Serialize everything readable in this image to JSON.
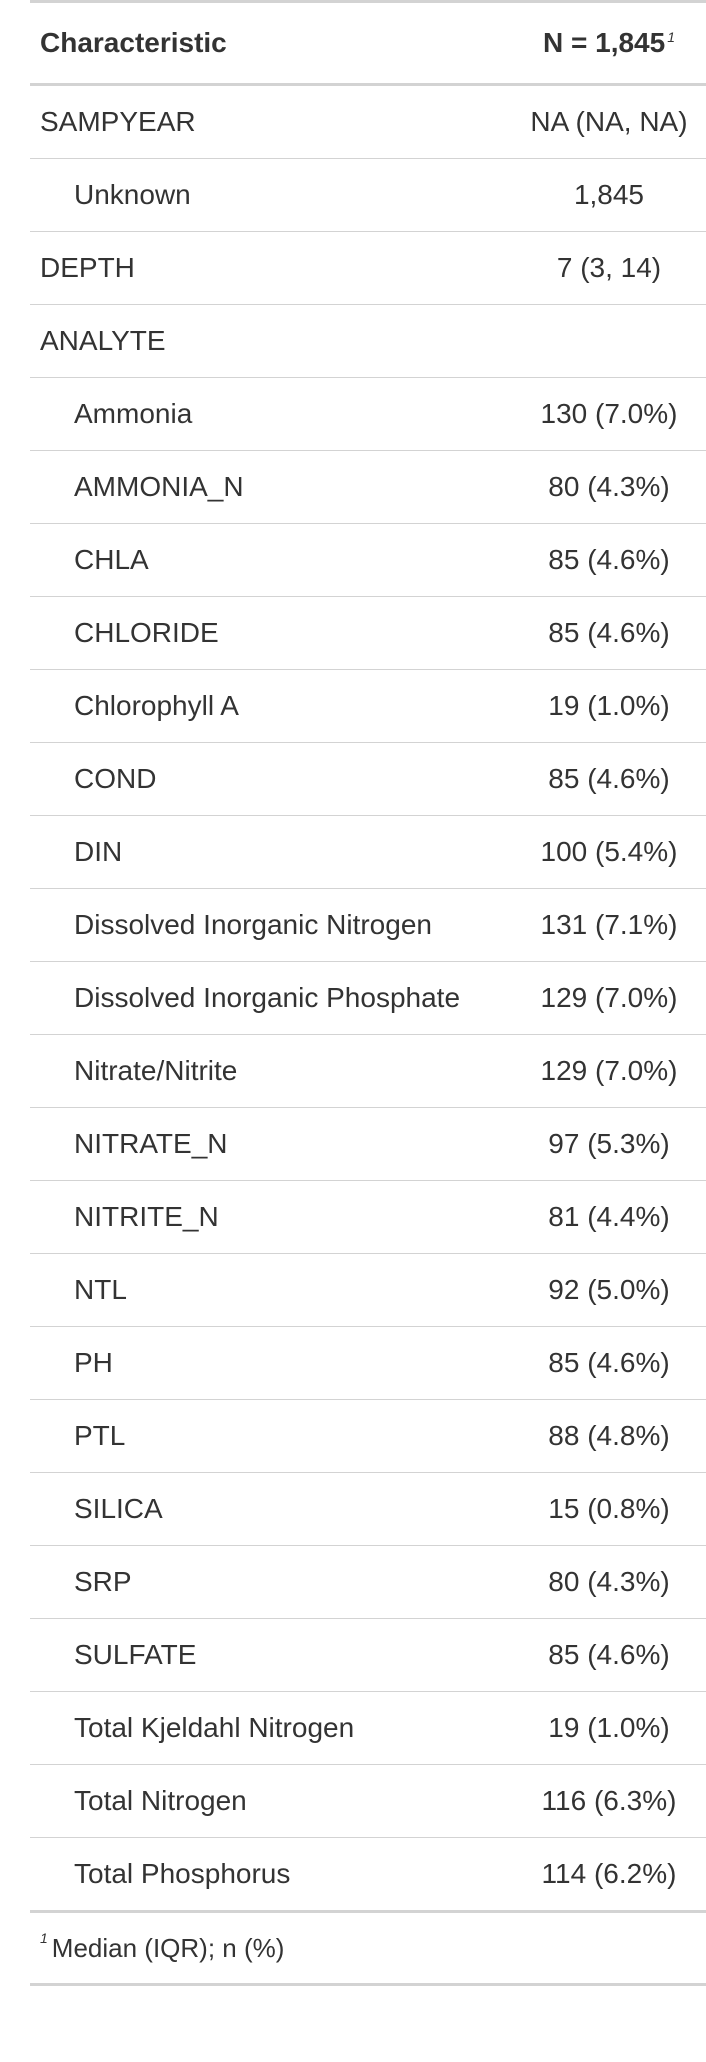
{
  "header": {
    "characteristic_label": "Characteristic",
    "n_label": "N = 1,845",
    "n_footnote_mark": "1"
  },
  "rows": [
    {
      "label": "SAMPYEAR",
      "value": "NA (NA, NA)",
      "indent": false
    },
    {
      "label": "Unknown",
      "value": "1,845",
      "indent": true
    },
    {
      "label": "DEPTH",
      "value": "7 (3, 14)",
      "indent": false
    },
    {
      "label": "ANALYTE",
      "value": "",
      "indent": false
    },
    {
      "label": "Ammonia",
      "value": "130 (7.0%)",
      "indent": true
    },
    {
      "label": "AMMONIA_N",
      "value": "80 (4.3%)",
      "indent": true
    },
    {
      "label": "CHLA",
      "value": "85 (4.6%)",
      "indent": true
    },
    {
      "label": "CHLORIDE",
      "value": "85 (4.6%)",
      "indent": true
    },
    {
      "label": "Chlorophyll A",
      "value": "19 (1.0%)",
      "indent": true
    },
    {
      "label": "COND",
      "value": "85 (4.6%)",
      "indent": true
    },
    {
      "label": "DIN",
      "value": "100 (5.4%)",
      "indent": true
    },
    {
      "label": "Dissolved Inorganic Nitrogen",
      "value": "131 (7.1%)",
      "indent": true
    },
    {
      "label": "Dissolved Inorganic Phosphate",
      "value": "129 (7.0%)",
      "indent": true
    },
    {
      "label": "Nitrate/Nitrite",
      "value": "129 (7.0%)",
      "indent": true
    },
    {
      "label": "NITRATE_N",
      "value": "97 (5.3%)",
      "indent": true
    },
    {
      "label": "NITRITE_N",
      "value": "81 (4.4%)",
      "indent": true
    },
    {
      "label": "NTL",
      "value": "92 (5.0%)",
      "indent": true
    },
    {
      "label": "PH",
      "value": "85 (4.6%)",
      "indent": true
    },
    {
      "label": "PTL",
      "value": "88 (4.8%)",
      "indent": true
    },
    {
      "label": "SILICA",
      "value": "15 (0.8%)",
      "indent": true
    },
    {
      "label": "SRP",
      "value": "80 (4.3%)",
      "indent": true
    },
    {
      "label": "SULFATE",
      "value": "85 (4.6%)",
      "indent": true
    },
    {
      "label": "Total Kjeldahl Nitrogen",
      "value": "19 (1.0%)",
      "indent": true
    },
    {
      "label": "Total Nitrogen",
      "value": "116 (6.3%)",
      "indent": true
    },
    {
      "label": "Total Phosphorus",
      "value": "114 (6.2%)",
      "indent": true
    }
  ],
  "footnote": {
    "mark": "1",
    "text": "Median (IQR); n (%)"
  }
}
